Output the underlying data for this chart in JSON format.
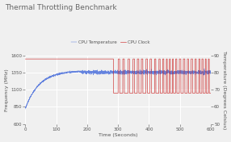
{
  "title": "Thermal Throttling Benchmark",
  "xlabel": "Time (Seconds)",
  "ylabel_left": "Frequency (MHz)",
  "ylabel_right": "Temperature (Degrees Celsius)",
  "xlim": [
    0,
    600
  ],
  "ylim_left": [
    600,
    1600
  ],
  "ylim_right": [
    50,
    90
  ],
  "yticks_left": [
    600,
    850,
    1100,
    1350,
    1600
  ],
  "yticks_right": [
    50,
    60,
    70,
    80,
    90
  ],
  "xticks": [
    0,
    100,
    200,
    300,
    400,
    500,
    600
  ],
  "cpu_temp_color": "#5577dd",
  "cpu_clock_color": "#cc2222",
  "background_color": "#f0f0f0",
  "grid_color": "#ffffff",
  "legend_entries": [
    "CPU Temperature",
    "CPU Clock"
  ],
  "throttle_regions": [
    [
      285,
      300
    ],
    [
      305,
      315
    ],
    [
      320,
      332
    ],
    [
      337,
      348
    ],
    [
      353,
      362
    ],
    [
      367,
      375
    ],
    [
      380,
      390
    ],
    [
      395,
      403
    ],
    [
      408,
      418
    ],
    [
      422,
      432
    ],
    [
      436,
      444
    ],
    [
      448,
      456
    ],
    [
      459,
      466
    ],
    [
      469,
      476
    ],
    [
      479,
      486
    ],
    [
      490,
      498
    ],
    [
      503,
      511
    ],
    [
      516,
      524
    ],
    [
      528,
      536
    ],
    [
      541,
      549
    ],
    [
      553,
      561
    ],
    [
      565,
      571
    ],
    [
      575,
      582
    ],
    [
      585,
      592
    ],
    [
      595,
      600
    ]
  ],
  "clock_high_temp": 88,
  "clock_low_temp": 68,
  "seed": 42
}
